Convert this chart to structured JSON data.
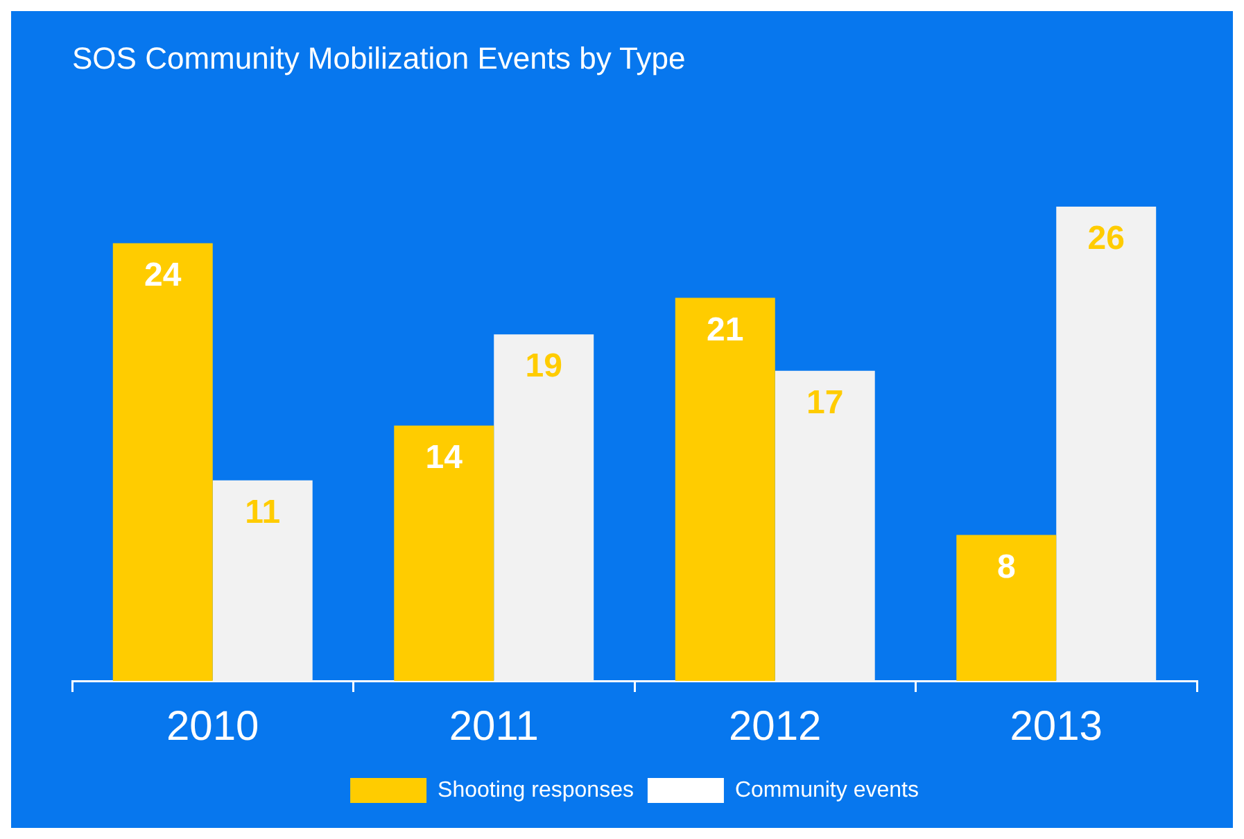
{
  "chart_data": {
    "type": "bar",
    "title": "SOS Community Mobilization Events by Type",
    "categories": [
      "2010",
      "2011",
      "2012",
      "2013"
    ],
    "series": [
      {
        "name": "Shooting responses",
        "color": "#ffcc00",
        "values": [
          24,
          14,
          21,
          8
        ]
      },
      {
        "name": "Community events",
        "color": "#f2f2f2",
        "values": [
          11,
          19,
          17,
          26
        ]
      }
    ],
    "data_labels": true,
    "grid": false,
    "legend": "bottom"
  }
}
